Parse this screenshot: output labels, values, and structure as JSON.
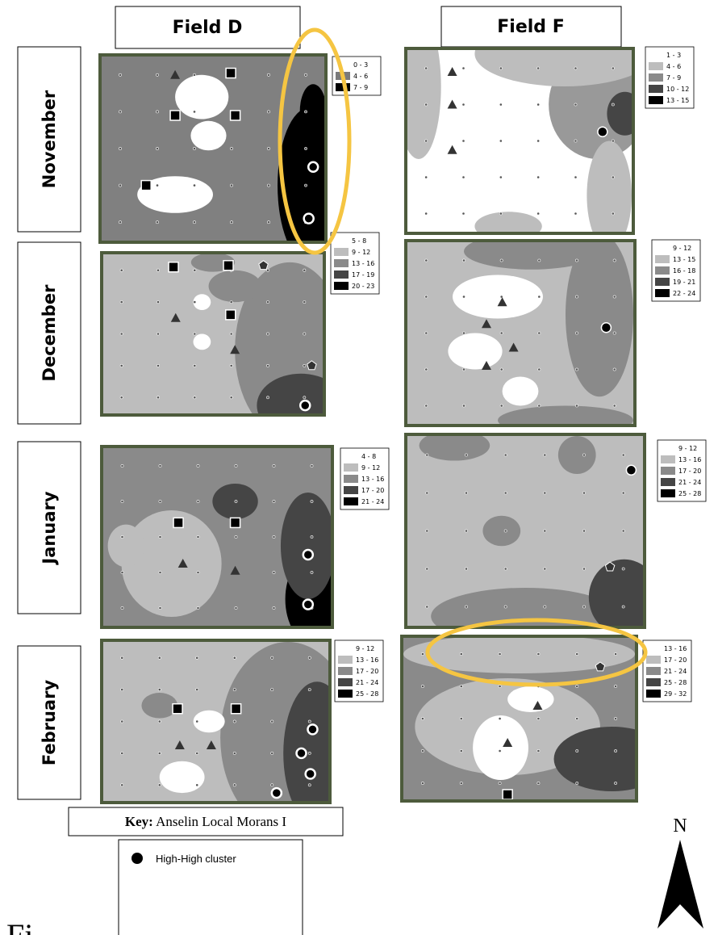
{
  "columns": [
    "Field D",
    "Field F"
  ],
  "rows": [
    "November",
    "December",
    "January",
    "February"
  ],
  "legends": [
    [
      [
        "0 - 3",
        "4 - 6",
        "7 - 9"
      ],
      [
        "1 - 3",
        "4 - 6",
        "7 - 9",
        "10 - 12",
        "13 - 15"
      ]
    ],
    [
      [
        "5 - 8",
        "9 - 12",
        "13 - 16",
        "17 - 19",
        "20 - 23"
      ],
      [
        "9 - 12",
        "13 - 15",
        "16 - 18",
        "19 - 21",
        "22 - 24"
      ]
    ],
    [
      [
        "4 - 8",
        "9 - 12",
        "13 - 16",
        "17 - 20",
        "21 - 24"
      ],
      [
        "9 - 12",
        "13 - 16",
        "17 - 20",
        "21 - 24",
        "25 - 28"
      ]
    ],
    [
      [
        "9 - 12",
        "13 - 16",
        "17 - 20",
        "21 - 24",
        "25 - 28"
      ],
      [
        "13 - 16",
        "17 - 20",
        "21 - 24",
        "25 - 28",
        "29 - 32"
      ]
    ]
  ],
  "key": {
    "label": "Key:",
    "title": "Anselin Local Morans I",
    "items": [
      "High-High cluster"
    ]
  },
  "north": "N",
  "caption": "Fi"
}
